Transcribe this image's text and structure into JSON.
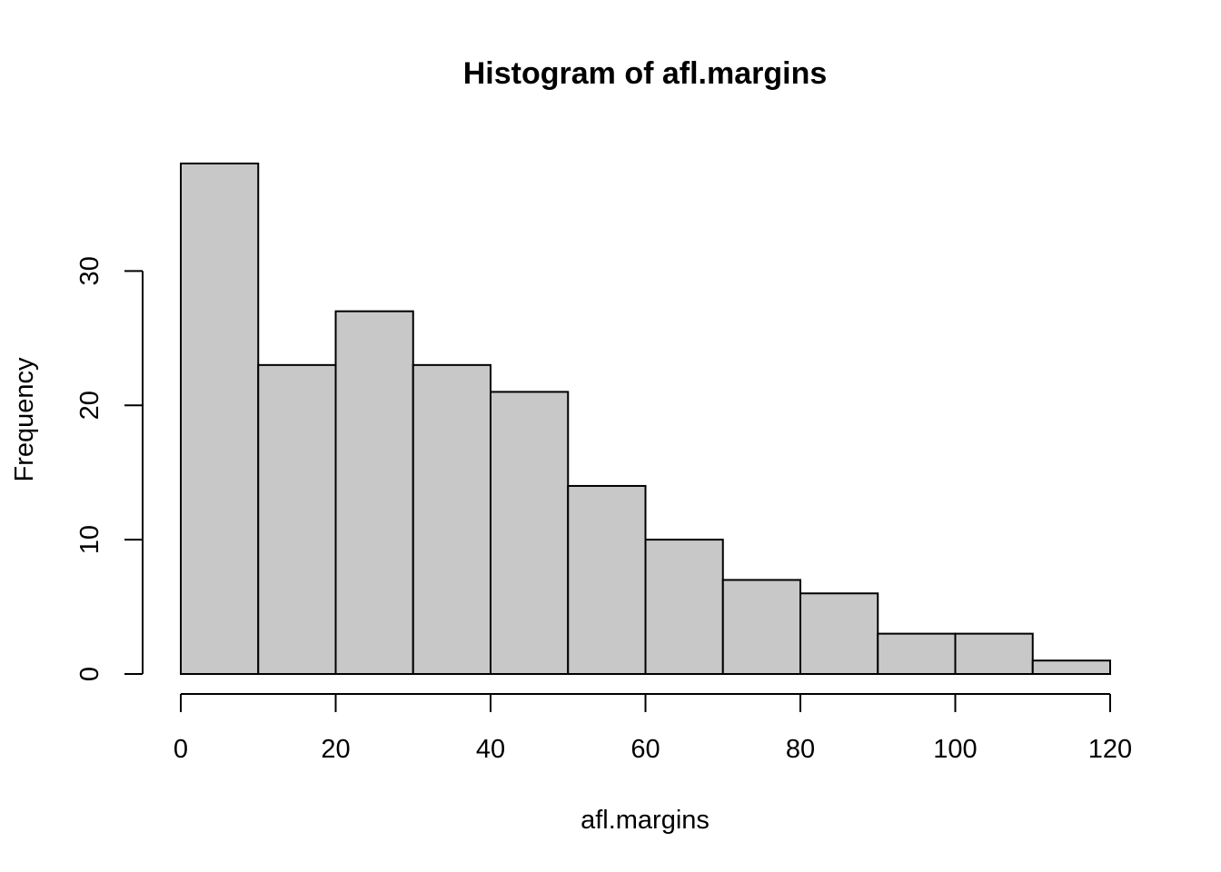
{
  "chart_data": {
    "type": "bar",
    "title": "Histogram of afl.margins",
    "xlabel": "afl.margins",
    "ylabel": "Frequency",
    "bins": [
      {
        "from": 0,
        "to": 10,
        "count": 38
      },
      {
        "from": 10,
        "to": 20,
        "count": 23
      },
      {
        "from": 20,
        "to": 30,
        "count": 27
      },
      {
        "from": 30,
        "to": 40,
        "count": 23
      },
      {
        "from": 40,
        "to": 50,
        "count": 21
      },
      {
        "from": 50,
        "to": 60,
        "count": 14
      },
      {
        "from": 60,
        "to": 70,
        "count": 10
      },
      {
        "from": 70,
        "to": 80,
        "count": 7
      },
      {
        "from": 80,
        "to": 90,
        "count": 6
      },
      {
        "from": 90,
        "to": 100,
        "count": 3
      },
      {
        "from": 100,
        "to": 110,
        "count": 3
      },
      {
        "from": 110,
        "to": 120,
        "count": 1
      }
    ],
    "x_ticks": [
      0,
      20,
      40,
      60,
      80,
      100,
      120
    ],
    "y_ticks": [
      0,
      10,
      20,
      30
    ],
    "xlim": [
      0,
      120
    ],
    "ylim": [
      0,
      38
    ],
    "bar_fill": "#c8c8c8",
    "grid": false,
    "legend": "none"
  }
}
